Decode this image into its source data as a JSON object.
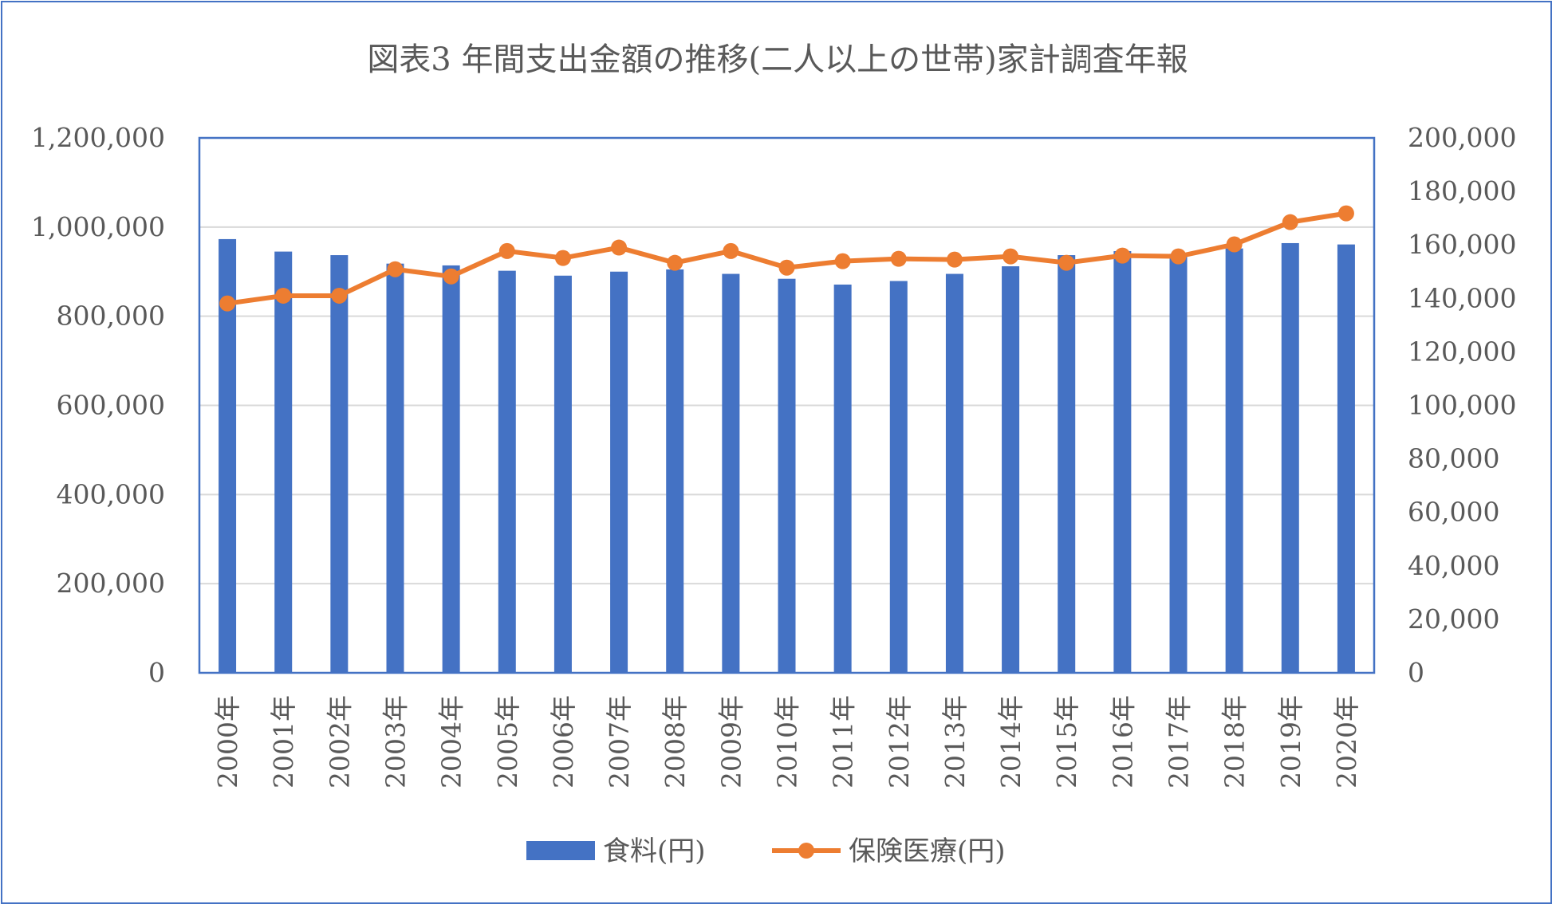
{
  "chart_data": {
    "type": "bar+line",
    "title": "図表3 年間支出金額の推移(二人以上の世帯)家計調査年報",
    "categories": [
      "2000年",
      "2001年",
      "2002年",
      "2003年",
      "2004年",
      "2005年",
      "2006年",
      "2007年",
      "2008年",
      "2009年",
      "2010年",
      "2011年",
      "2012年",
      "2013年",
      "2014年",
      "2015年",
      "2016年",
      "2017年",
      "2018年",
      "2019年",
      "2020年"
    ],
    "series": [
      {
        "name": "食料(円)",
        "type": "bar",
        "axis": "left",
        "color": "#4472c4",
        "values": [
          973000,
          945000,
          937000,
          918000,
          914000,
          902000,
          891000,
          900000,
          905000,
          895000,
          884000,
          871000,
          879000,
          895000,
          912000,
          937000,
          946000,
          940000,
          952000,
          964000,
          961000
        ]
      },
      {
        "name": "保険医療(円)",
        "type": "line",
        "axis": "right",
        "color": "#ed7d31",
        "values": [
          138100,
          141000,
          141000,
          150900,
          148200,
          157700,
          155100,
          159000,
          153300,
          157700,
          151500,
          153900,
          154800,
          154500,
          155700,
          153300,
          156000,
          155700,
          160200,
          168500,
          171800
        ]
      }
    ],
    "y_left": {
      "range": [
        0,
        1200000
      ],
      "ticks": [
        "0",
        "200,000",
        "400,000",
        "600,000",
        "800,000",
        "1,000,000",
        "1,200,000"
      ]
    },
    "y_right": {
      "range": [
        0,
        200000
      ],
      "ticks": [
        "0",
        "20,000",
        "40,000",
        "60,000",
        "80,000",
        "100,000",
        "120,000",
        "140,000",
        "160,000",
        "180,000",
        "200,000"
      ]
    },
    "grid": true,
    "legend": "bottom"
  }
}
